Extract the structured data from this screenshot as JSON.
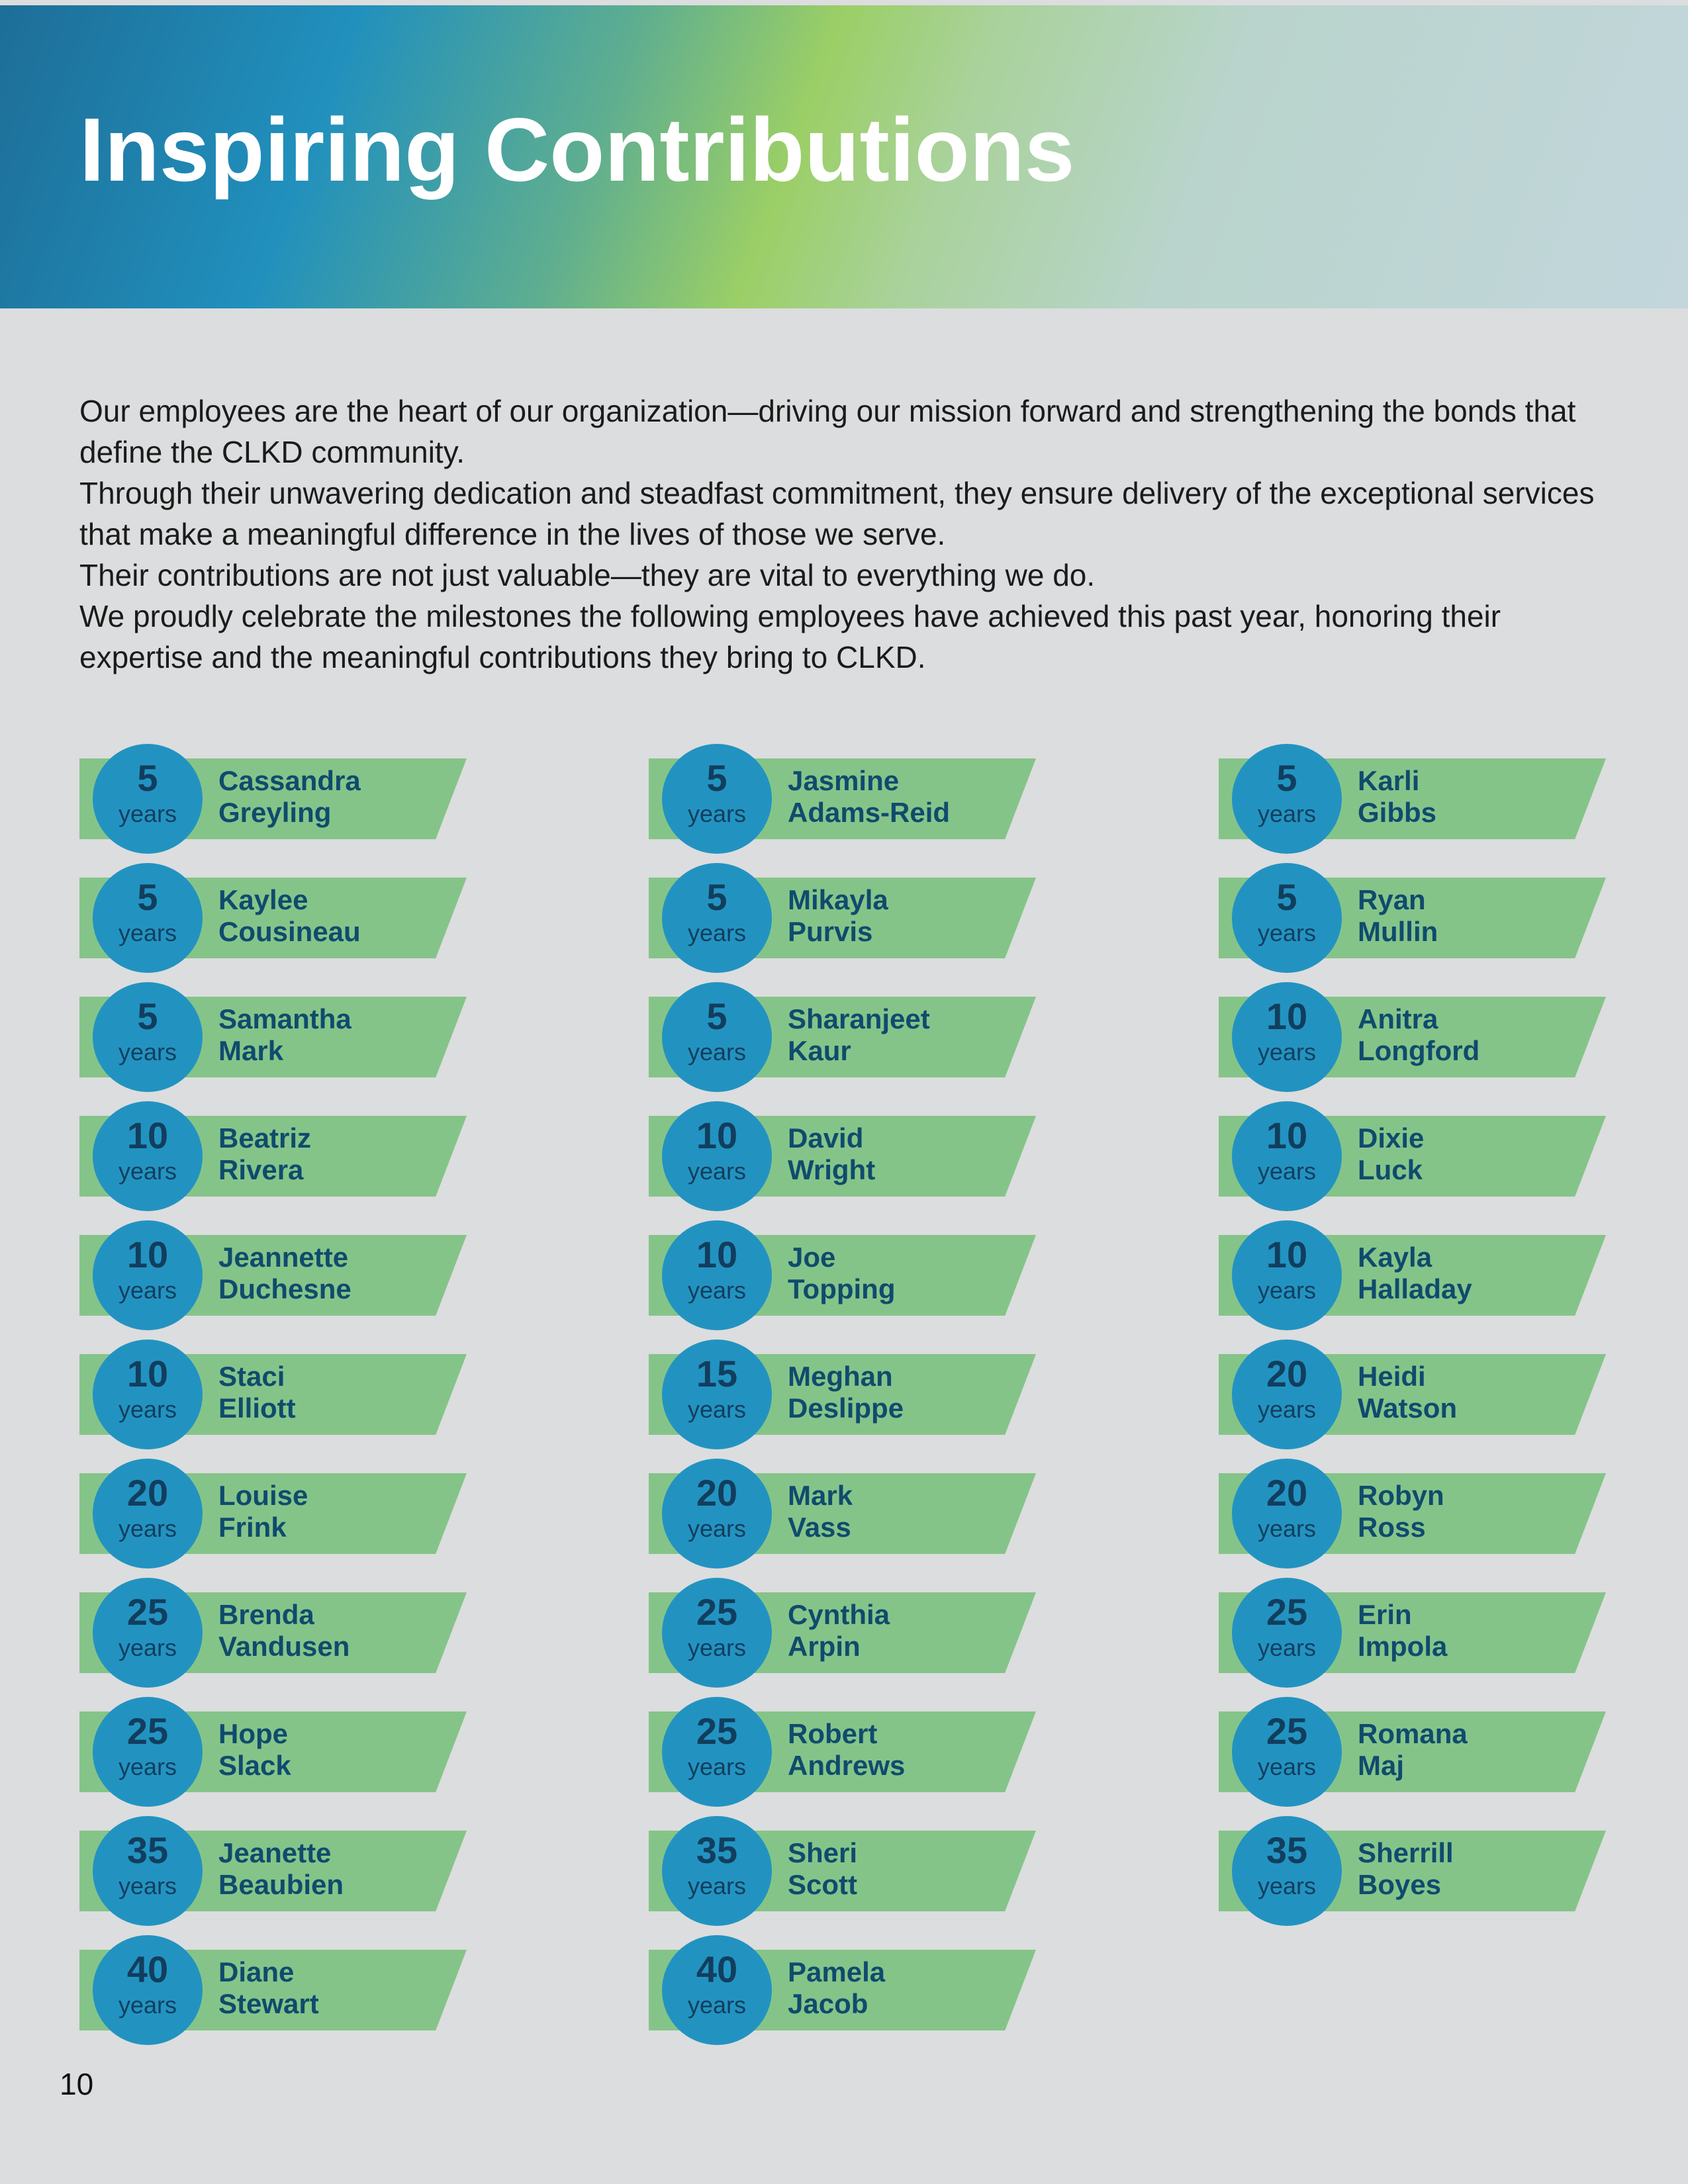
{
  "header": {
    "title": "Inspiring Contributions"
  },
  "intro": [
    "Our employees are the heart of our organization—driving our mission forward and strengthening the bonds that define the CLKD community.",
    "Through their unwavering dedication and steadfast commitment, they ensure delivery of the exceptional services that make a meaningful difference in the lives of those we serve.",
    "Their contributions are not just valuable—they are vital to everything we do.",
    "We proudly celebrate the milestones the following employees have achieved this past year, honoring their expertise and the meaningful contributions they bring to CLKD."
  ],
  "employees": [
    {
      "years": 5,
      "unit": "years",
      "first": "Cassandra",
      "last": "Greyling"
    },
    {
      "years": 5,
      "unit": "years",
      "first": "Jasmine",
      "last": "Adams-Reid"
    },
    {
      "years": 5,
      "unit": "years",
      "first": "Karli",
      "last": "Gibbs"
    },
    {
      "years": 5,
      "unit": "years",
      "first": "Kaylee",
      "last": "Cousineau"
    },
    {
      "years": 5,
      "unit": "years",
      "first": "Mikayla",
      "last": "Purvis"
    },
    {
      "years": 5,
      "unit": "years",
      "first": "Ryan",
      "last": "Mullin"
    },
    {
      "years": 5,
      "unit": "years",
      "first": "Samantha",
      "last": "Mark"
    },
    {
      "years": 5,
      "unit": "years",
      "first": "Sharanjeet",
      "last": "Kaur"
    },
    {
      "years": 10,
      "unit": "years",
      "first": "Anitra",
      "last": "Longford"
    },
    {
      "years": 10,
      "unit": "years",
      "first": "Beatriz",
      "last": "Rivera"
    },
    {
      "years": 10,
      "unit": "years",
      "first": "David",
      "last": "Wright"
    },
    {
      "years": 10,
      "unit": "years",
      "first": "Dixie",
      "last": "Luck"
    },
    {
      "years": 10,
      "unit": "years",
      "first": "Jeannette",
      "last": "Duchesne"
    },
    {
      "years": 10,
      "unit": "years",
      "first": "Joe",
      "last": "Topping"
    },
    {
      "years": 10,
      "unit": "years",
      "first": "Kayla",
      "last": "Halladay"
    },
    {
      "years": 10,
      "unit": "years",
      "first": "Staci",
      "last": "Elliott"
    },
    {
      "years": 15,
      "unit": "years",
      "first": "Meghan",
      "last": "Deslippe"
    },
    {
      "years": 20,
      "unit": "years",
      "first": "Heidi",
      "last": "Watson"
    },
    {
      "years": 20,
      "unit": "years",
      "first": "Louise",
      "last": "Frink"
    },
    {
      "years": 20,
      "unit": "years",
      "first": "Mark",
      "last": "Vass"
    },
    {
      "years": 20,
      "unit": "years",
      "first": "Robyn",
      "last": "Ross"
    },
    {
      "years": 25,
      "unit": "years",
      "first": "Brenda",
      "last": "Vandusen"
    },
    {
      "years": 25,
      "unit": "years",
      "first": "Cynthia",
      "last": "Arpin"
    },
    {
      "years": 25,
      "unit": "years",
      "first": "Erin",
      "last": "Impola"
    },
    {
      "years": 25,
      "unit": "years",
      "first": "Hope",
      "last": "Slack"
    },
    {
      "years": 25,
      "unit": "years",
      "first": "Robert",
      "last": "Andrews"
    },
    {
      "years": 25,
      "unit": "years",
      "first": "Romana",
      "last": "Maj"
    },
    {
      "years": 35,
      "unit": "years",
      "first": "Jeanette",
      "last": "Beaubien"
    },
    {
      "years": 35,
      "unit": "years",
      "first": "Sheri",
      "last": "Scott"
    },
    {
      "years": 35,
      "unit": "years",
      "first": "Sherrill",
      "last": "Boyes"
    },
    {
      "years": 40,
      "unit": "years",
      "first": "Diane",
      "last": "Stewart"
    },
    {
      "years": 40,
      "unit": "years",
      "first": "Pamela",
      "last": "Jacob"
    }
  ],
  "footer": {
    "page_number": "10"
  }
}
